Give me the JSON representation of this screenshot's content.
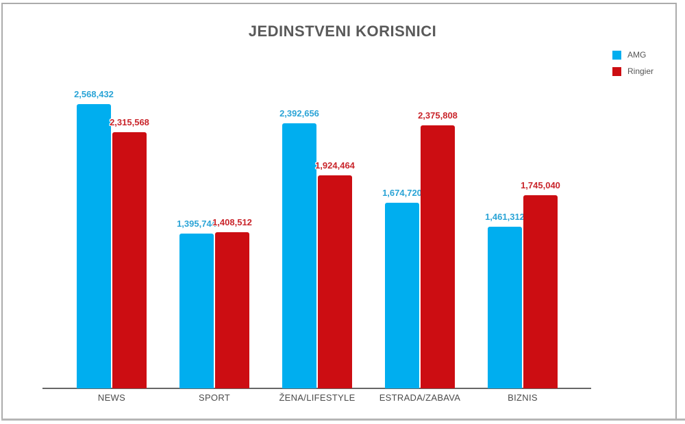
{
  "frame": {
    "border_color": "#ababab",
    "bottom_edge_color": "#b5b5b5"
  },
  "chart_data": {
    "type": "bar",
    "title": "JEDINSTVENI KORISNICI",
    "title_color": "#595959",
    "categories": [
      "NEWS",
      "SPORT",
      "ŽENA/LIFESTYLE",
      "ESTRADA/ZABAVA",
      "BIZNIS"
    ],
    "series": [
      {
        "name": "AMG",
        "color": "#00AEEF",
        "label_color": "#2BA4D6",
        "values": [
          2568432,
          1395744,
          2392656,
          1674720,
          1461312
        ]
      },
      {
        "name": "Ringier",
        "color": "#CC0D12",
        "label_color": "#C9252B",
        "values": [
          2315568,
          1408512,
          1924464,
          2375808,
          1745040
        ]
      }
    ],
    "value_labels": [
      "2,568,432",
      "1,395,744",
      "2,392,656",
      "1,674,720",
      "1,461,312",
      "2,315,568",
      "1,408,512",
      "1,924,464",
      "2,375,808",
      "1,745,040"
    ],
    "ylim": [
      0,
      2568432
    ],
    "grid": false,
    "y_axis_visible": false,
    "legend_position": "top-right",
    "axis_color": "#666666",
    "category_label_color": "#4a4a4a"
  }
}
